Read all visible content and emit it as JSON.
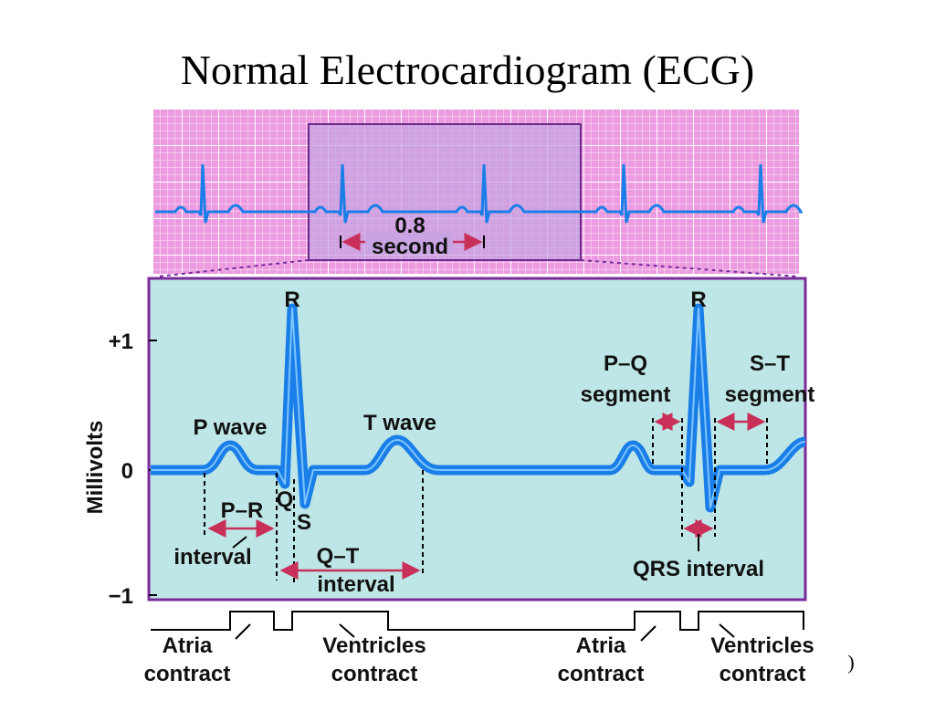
{
  "title": "Normal Electrocardiogram (ECG)",
  "strip": {
    "duration": "0.8",
    "unit": "second"
  },
  "axis": {
    "label": "Millivolts",
    "ticks": [
      "+1",
      "0",
      "−1"
    ]
  },
  "waves": {
    "r1": "R",
    "r2": "R",
    "p_wave": "P wave",
    "t_wave": "T wave",
    "q": "Q",
    "s": "S"
  },
  "intervals": {
    "pr": "P–R",
    "pr_sub": "interval",
    "qt": "Q–T",
    "qt_sub": "interval",
    "pq": "P–Q",
    "pq_sub": "segment",
    "st": "S–T",
    "st_sub": "segment",
    "qrs": "QRS interval"
  },
  "phases": [
    {
      "line1": "Atria",
      "line2": "contract"
    },
    {
      "line1": "Ventricles",
      "line2": "contract"
    },
    {
      "line1": "Atria",
      "line2": "contract"
    },
    {
      "line1": "Ventricles",
      "line2": "contract"
    }
  ],
  "footnote": ")"
}
